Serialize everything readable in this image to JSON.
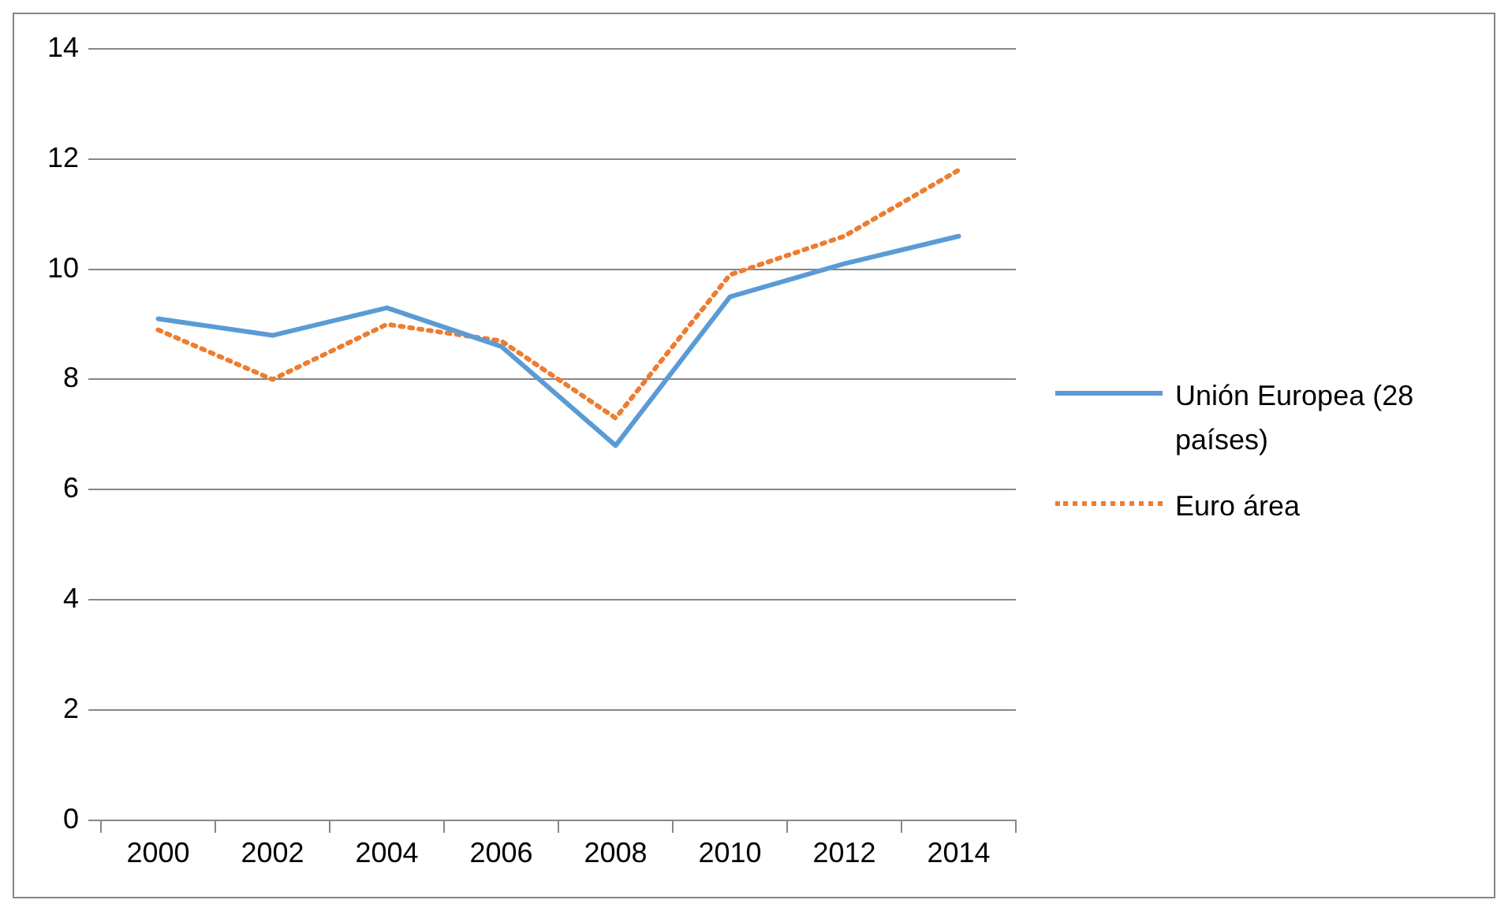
{
  "chart_data": {
    "type": "line",
    "categories": [
      "2000",
      "2002",
      "2004",
      "2006",
      "2008",
      "2010",
      "2012",
      "2014"
    ],
    "series": [
      {
        "name": "Unión Europea (28 países)",
        "color": "#5b9bd5",
        "line_style": "solid",
        "values": [
          9.1,
          8.8,
          9.3,
          8.6,
          6.8,
          9.5,
          10.1,
          10.6
        ]
      },
      {
        "name": "Euro área",
        "color": "#ed7d31",
        "line_style": "dotted",
        "values": [
          8.9,
          8.0,
          9.0,
          8.7,
          7.3,
          9.9,
          10.6,
          11.8
        ]
      }
    ],
    "ylim": [
      0,
      14
    ],
    "yticks": [
      0,
      2,
      4,
      6,
      8,
      10,
      12,
      14
    ],
    "grid": "y",
    "legend": "right",
    "marker": "none"
  }
}
